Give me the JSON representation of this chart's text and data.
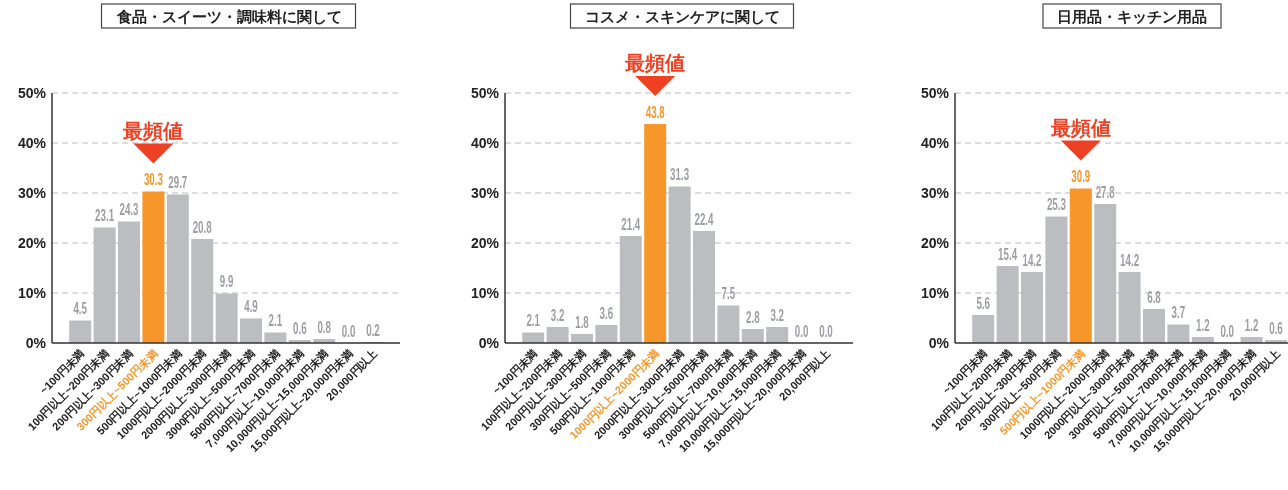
{
  "chart_data": [
    {
      "type": "bar",
      "title": "食品・スイーツ・調味料に関して",
      "categories": [
        "~100円未満",
        "100円以上~200円未満",
        "200円以上~300円未満",
        "300円以上~500円未満",
        "500円以上~1000円未満",
        "1000円以上~2000円未満",
        "2000円以上~3000円未満",
        "3000円以上~5000円未満",
        "5000円以上~7000円未満",
        "7,000円以上~10,000円未満",
        "10,000円以上~15,000円未満",
        "15,000円以上~20,000円未満",
        "20,000円以上"
      ],
      "values": [
        4.5,
        23.1,
        24.3,
        30.3,
        29.7,
        20.8,
        9.9,
        4.9,
        2.1,
        0.6,
        0.8,
        0.0,
        0.2
      ],
      "value_labels": [
        "4.5",
        "23.1",
        "24.3",
        "30.3",
        "29.7",
        "20.8",
        "9.9",
        "4.9",
        "2.1",
        "0.6",
        "0.8",
        "0.0",
        "0.2"
      ],
      "colors": [
        "#bcbdc1",
        "#bcbdc1",
        "#bcbdc1",
        "#f7962a",
        "#bcbdc1",
        "#bcbdc1",
        "#bcbdc1",
        "#bcbdc1",
        "#bcbdc1",
        "#bcbdc1",
        "#bcbdc1",
        "#bcbdc1",
        "#bcbdc1"
      ],
      "ylim": [
        0,
        50
      ],
      "yticks": [
        {
          "value": 0,
          "label": "0%"
        },
        {
          "value": 10,
          "label": "10%"
        },
        {
          "value": 20,
          "label": "20%"
        },
        {
          "value": 30,
          "label": "30%"
        },
        {
          "value": 40,
          "label": "40%"
        },
        {
          "value": 50,
          "label": "50%"
        }
      ],
      "grid": "y",
      "annotations": [
        {
          "text": "最頻値",
          "x": "300円以上~500円未満",
          "y": 30.3
        }
      ]
    },
    {
      "type": "bar",
      "title": "コスメ・スキンケアに関して",
      "categories": [
        "~100円未満",
        "100円以上~200円未満",
        "200円以上~300円未満",
        "300円以上~500円未満",
        "500円以上~1000円未満",
        "1000円以上~2000円未満",
        "2000円以上~3000円未満",
        "3000円以上~5000円未満",
        "5000円以上~7000円未満",
        "7,000円以上~10,000円未満",
        "10,000円以上~15,000円未満",
        "15,000円以上~20,000円未満",
        "20,000円以上"
      ],
      "values": [
        2.1,
        3.2,
        1.8,
        3.6,
        21.4,
        43.8,
        31.3,
        22.4,
        7.5,
        2.8,
        3.2,
        0.0,
        0.0
      ],
      "value_labels": [
        "2.1",
        "3.2",
        "1.8",
        "3.6",
        "21.4",
        "43.8",
        "31.3",
        "22.4",
        "7.5",
        "2.8",
        "3.2",
        "0.0",
        "0.0"
      ],
      "colors": [
        "#bcbdc1",
        "#bcbdc1",
        "#bcbdc1",
        "#bcbdc1",
        "#bcbdc1",
        "#f7962a",
        "#bcbdc1",
        "#bcbdc1",
        "#bcbdc1",
        "#bcbdc1",
        "#bcbdc1",
        "#bcbdc1",
        "#bcbdc1"
      ],
      "ylim": [
        0,
        50
      ],
      "yticks": [
        {
          "value": 0,
          "label": "0%"
        },
        {
          "value": 10,
          "label": "10%"
        },
        {
          "value": 20,
          "label": "20%"
        },
        {
          "value": 30,
          "label": "30%"
        },
        {
          "value": 40,
          "label": "40%"
        },
        {
          "value": 50,
          "label": "50%"
        }
      ],
      "grid": "y",
      "annotations": [
        {
          "text": "最頻値",
          "x": "1000円以上~2000円未満",
          "y": 43.8
        }
      ]
    },
    {
      "type": "bar",
      "title": "日用品・キッチン用品",
      "categories": [
        "~100円未満",
        "100円以上~200円未満",
        "200円以上~300円未満",
        "300円以上~500円未満",
        "500円以上~1000円未満",
        "1000円以上~2000円未満",
        "2000円以上~3000円未満",
        "3000円以上~5000円未満",
        "5000円以上~7000円未満",
        "7,000円以上~10,000円未満",
        "10,000円以上~15,000円未満",
        "15,000円以上~20,000円未満",
        "20,000円以上"
      ],
      "values": [
        5.6,
        15.4,
        14.2,
        25.3,
        30.9,
        27.8,
        14.2,
        6.8,
        3.7,
        1.2,
        0.0,
        1.2,
        0.6
      ],
      "value_labels": [
        "5.6",
        "15.4",
        "14.2",
        "25.3",
        "30.9",
        "27.8",
        "14.2",
        "6.8",
        "3.7",
        "1.2",
        "0.0",
        "1.2",
        "0.6"
      ],
      "colors": [
        "#bcbdc1",
        "#bcbdc1",
        "#bcbdc1",
        "#bcbdc1",
        "#f7962a",
        "#bcbdc1",
        "#bcbdc1",
        "#bcbdc1",
        "#bcbdc1",
        "#bcbdc1",
        "#bcbdc1",
        "#bcbdc1",
        "#bcbdc1"
      ],
      "ylim": [
        0,
        50
      ],
      "yticks": [
        {
          "value": 0,
          "label": "0%"
        },
        {
          "value": 10,
          "label": "10%"
        },
        {
          "value": 20,
          "label": "20%"
        },
        {
          "value": 30,
          "label": "30%"
        },
        {
          "value": 40,
          "label": "40%"
        },
        {
          "value": 50,
          "label": "50%"
        }
      ],
      "grid": "y",
      "annotations": [
        {
          "text": "最頻値",
          "x": "500円以上~1000円未満",
          "y": 30.9
        }
      ]
    }
  ]
}
